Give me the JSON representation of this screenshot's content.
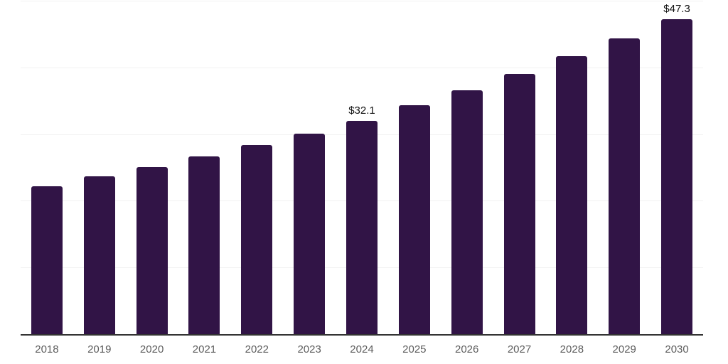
{
  "chart_data": {
    "type": "bar",
    "title": "",
    "xlabel": "",
    "ylabel": "",
    "categories": [
      "2018",
      "2019",
      "2020",
      "2021",
      "2022",
      "2023",
      "2024",
      "2025",
      "2026",
      "2027",
      "2028",
      "2029",
      "2030"
    ],
    "values": [
      22.3,
      23.8,
      25.2,
      26.8,
      28.5,
      30.2,
      32.1,
      34.4,
      36.7,
      39.1,
      41.8,
      44.5,
      47.3
    ],
    "data_labels": [
      "",
      "",
      "",
      "",
      "",
      "",
      "$32.1",
      "",
      "",
      "",
      "",
      "",
      "$47.3"
    ],
    "ylim": [
      0,
      50
    ],
    "gridline_values": [
      10,
      20,
      30,
      40,
      50
    ],
    "grid": "horizontal-only",
    "legend": "none",
    "y_tick_labels_visible": false,
    "colors": {
      "bar": "#311446",
      "axis": "#333333",
      "gridline": "#f2f2f2",
      "x_tick_label": "#5c5c5c",
      "data_label": "#111111",
      "background": "#ffffff"
    }
  }
}
